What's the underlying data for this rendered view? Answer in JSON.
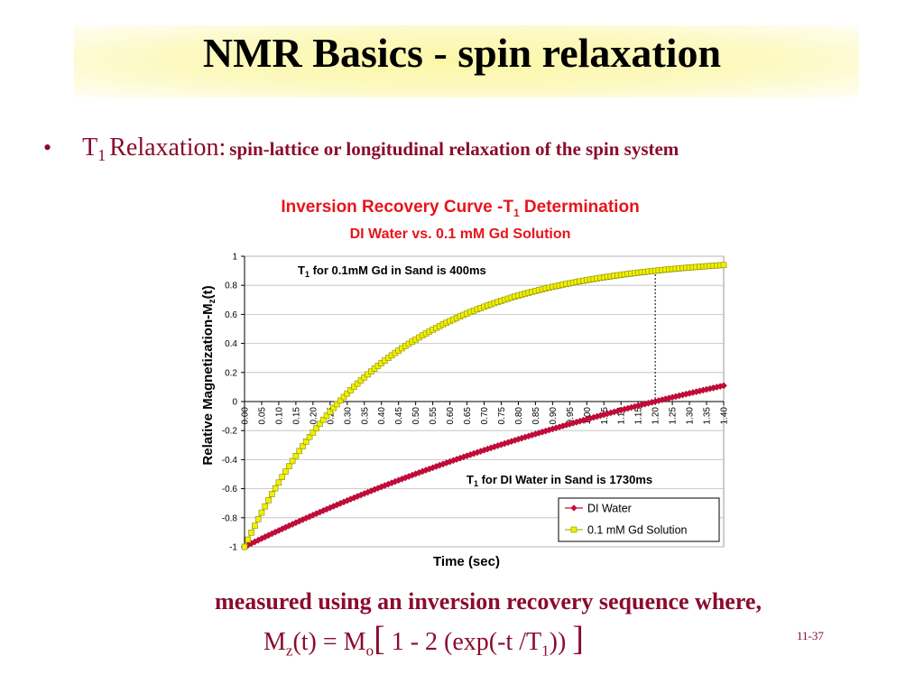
{
  "slide": {
    "title": "NMR Basics - spin relaxation",
    "bullet": {
      "dot": "•",
      "t1_letter": "T",
      "t1_subscript": "1",
      "relaxation_word": "Relaxation:",
      "description": "spin-lattice or longitudinal relaxation of the spin system"
    },
    "measured_text": "measured using an inversion recovery sequence where,",
    "formula": {
      "m_left": "M",
      "z_sub": "z",
      "t_part": "(t) = M",
      "o_sub": "o",
      "open_bracket": "[",
      "inner": " 1 - 2 (exp(-t /T",
      "one_sub": "1",
      "close_paren": "))",
      "close_bracket": "]"
    },
    "page_number": "11-37",
    "colors": {
      "title_band": "#fbf7a8",
      "text_maroon": "#8b0b2e",
      "chart_title_red": "#e8141b"
    }
  },
  "chart_data": {
    "type": "line",
    "title_main": "Inversion Recovery Curve -T",
    "title_sub": "1",
    "title_end": " Determination",
    "subtitle": "DI Water vs. 0.1 mM Gd Solution",
    "xlabel": "Time (sec)",
    "ylabel_main": "Relative Magnetization-M",
    "ylabel_sub": "z",
    "ylabel_end": "(t)",
    "xlim": [
      0,
      1.4
    ],
    "ylim": [
      -1,
      1
    ],
    "y_ticks": [
      "1",
      "0.8",
      "0.6",
      "0.4",
      "0.2",
      "0",
      "-0.2",
      "-0.4",
      "-0.6",
      "-0.8",
      "-1"
    ],
    "x_ticks": [
      "0.00",
      "0.05",
      "0.10",
      "0.15",
      "0.20",
      "0.25",
      "0.30",
      "0.35",
      "0.40",
      "0.45",
      "0.50",
      "0.55",
      "0.60",
      "0.65",
      "0.70",
      "0.75",
      "0.80",
      "0.85",
      "0.90",
      "0.95",
      "1.00",
      "1.05",
      "1.10",
      "1.15",
      "1.20",
      "1.25",
      "1.30",
      "1.35",
      "1.40"
    ],
    "x_step": 0.01,
    "series": [
      {
        "name": "DI Water",
        "t1": 1.73,
        "color": "#cc0a3a",
        "marker": "diamond"
      },
      {
        "name": "0.1 mM Gd Solution",
        "t1": 0.4,
        "color": "#f0f000",
        "marker": "square"
      }
    ],
    "annotations": [
      {
        "main": "T",
        "sub": "1",
        "rest": " for 0.1mM Gd in Sand is 400ms"
      },
      {
        "main": "T",
        "sub": "1",
        "rest": " for DI Water in Sand is 1730ms"
      }
    ],
    "reference_line_x": 1.2,
    "grid": "horizontal",
    "legend": "bottom-right"
  }
}
